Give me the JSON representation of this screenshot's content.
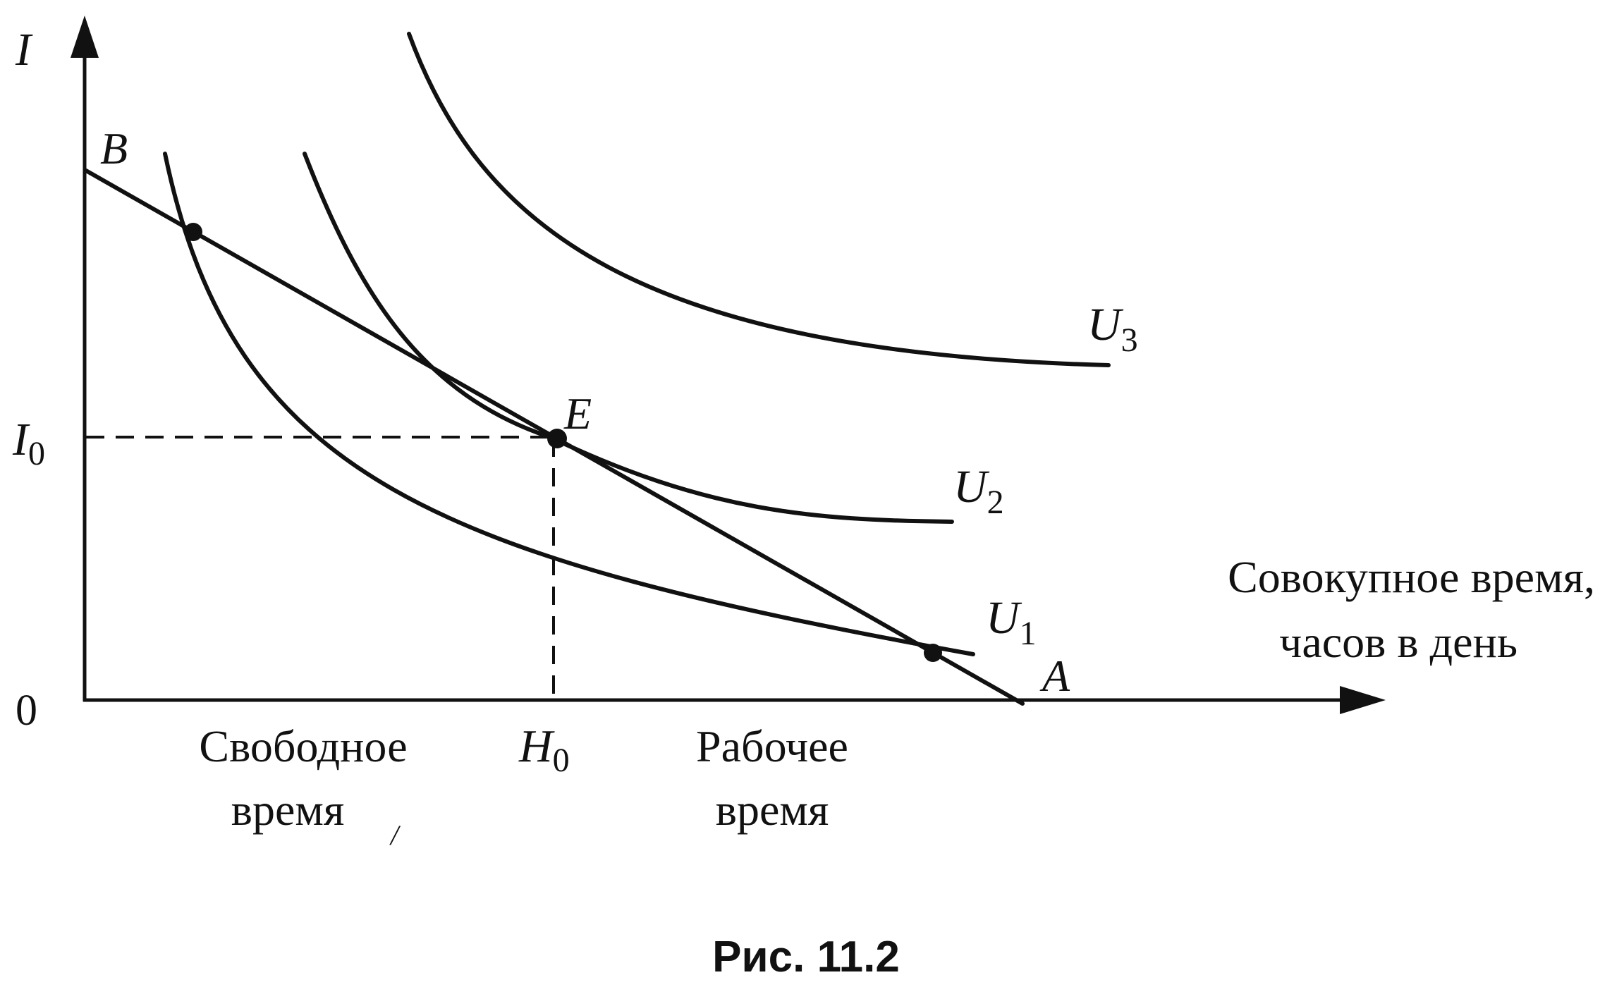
{
  "axes": {
    "y_label": "I",
    "origin_label": "0",
    "x_label_line1": "Совокупное время,",
    "x_label_line2": "часов в день",
    "y_tick_main": "I",
    "y_tick_sub": "0",
    "x_tick_main": "H",
    "x_tick_sub": "0"
  },
  "regions": {
    "leisure_line1": "Свободное",
    "leisure_line2": "время",
    "work_line1": "Рабочее",
    "work_line2": "время"
  },
  "budget_line": {
    "start_label": "B",
    "end_label": "A"
  },
  "curves": [
    {
      "main": "U",
      "sub": "1"
    },
    {
      "main": "U",
      "sub": "2"
    },
    {
      "main": "U",
      "sub": "3"
    }
  ],
  "equilibrium": {
    "label": "E"
  },
  "stray_mark": "/",
  "caption": "Рис. 11.2"
}
